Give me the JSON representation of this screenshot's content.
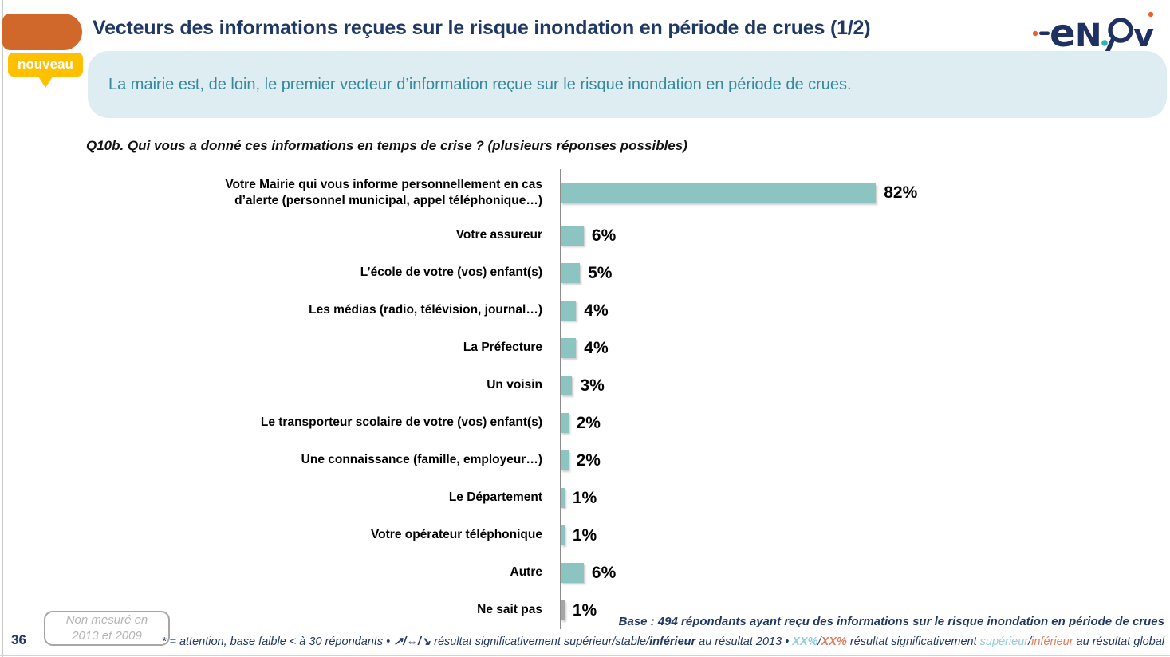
{
  "header": {
    "title": "Vecteurs des informations reçues sur le risque inondation en période de crues (1/2)",
    "badge": "nouveau",
    "logo": {
      "name": "enov-logo",
      "e": "e",
      "n": "N",
      "v": "v"
    }
  },
  "banner": {
    "text": "La mairie est, de loin, le premier vecteur d’information reçue sur le risque inondation en période de crues."
  },
  "chart_data": {
    "type": "bar",
    "orientation": "horizontal",
    "title": "Q10b. Qui vous a donné ces informations en temps de crise ? (plusieurs réponses possibles)",
    "unit": "%",
    "axis": "hidden (single vertical baseline, no gridlines, no tick labels)",
    "xlim": [
      0,
      100
    ],
    "categories": [
      "Votre Mairie qui vous informe personnellement en cas d’alerte (personnel municipal, appel téléphonique…)",
      "Votre assureur",
      "L’école de votre (vos) enfant(s)",
      "Les médias (radio, télévision, journal…)",
      "La Préfecture",
      "Un voisin",
      "Le transporteur scolaire de votre (vos) enfant(s)",
      "Une connaissance (famille, employeur…)",
      "Le Département",
      "Votre opérateur téléphonique",
      "Autre",
      "Ne sait pas"
    ],
    "values": [
      82,
      6,
      5,
      4,
      4,
      3,
      2,
      2,
      1,
      1,
      6,
      1
    ],
    "value_labels": [
      "82%",
      "6%",
      "5%",
      "4%",
      "4%",
      "3%",
      "2%",
      "2%",
      "1%",
      "1%",
      "6%",
      "1%"
    ],
    "bar_colors": [
      "#8CC4C2",
      "#8CC4C2",
      "#8CC4C2",
      "#8CC4C2",
      "#8CC4C2",
      "#8CC4C2",
      "#8CC4C2",
      "#8CC4C2",
      "#8CC4C2",
      "#8CC4C2",
      "#8CC4C2",
      "#A6A6A6"
    ]
  },
  "footer": {
    "page_number": "36",
    "note_box": "Non mesuré en 2013 et 2009",
    "base": "Base : 494 répondants ayant reçu des informations sur le risque inondation en période de crues",
    "footnote": {
      "part1": "* = attention, base faible < à 30 répondants • ",
      "arrows": "↗/⇔/↘",
      "part2": " résultat significativement supérieur/stable/",
      "inferieur2013": "inférieur",
      "part3": " au résultat 2013 • ",
      "xx_sup": "XX%",
      "slash1": "/",
      "xx_inf": "XX%",
      "part4": " résultat significativement ",
      "sup_word": "supérieur",
      "slash2": "/",
      "inf_word": "inférieur",
      "part5": " au résultat global"
    }
  },
  "colors": {
    "title_navy": "#1F3864",
    "banner_bg": "#DEEDF1",
    "banner_text_teal": "#35889E",
    "accent_orange": "#D0682B",
    "badge_yellow": "#FFC000",
    "bar_teal": "#8CC4C2",
    "bar_gray": "#A6A6A6",
    "highlight_blue": "#92CDDC",
    "highlight_salmon": "#E07B5B",
    "bottom_rule_blue": "#BDD7EE"
  }
}
